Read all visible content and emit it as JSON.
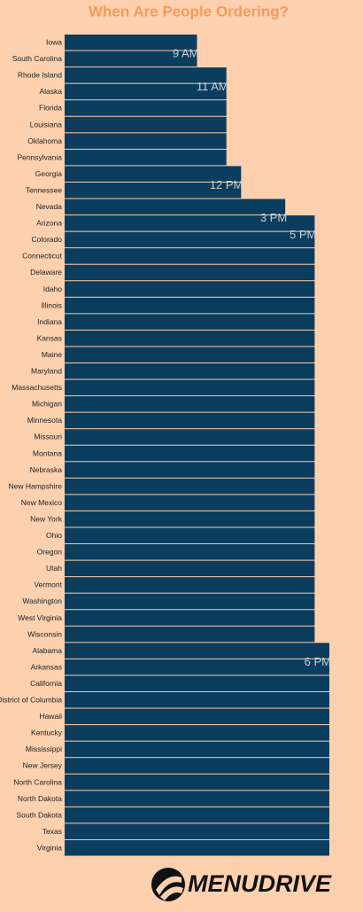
{
  "chart_data": {
    "type": "bar",
    "orientation": "horizontal",
    "title": "When Are People Ordering?",
    "categories": [
      "Iowa",
      "South Carolina",
      "Rhode Island",
      "Alaska",
      "Florida",
      "Louisiana",
      "Oklahoma",
      "Pennsylvania",
      "Georgia",
      "Tennessee",
      "Nevada",
      "Arizona",
      "Colorado",
      "Connecticut",
      "Delaware",
      "Idaho",
      "Illinois",
      "Indiana",
      "Kansas",
      "Maine",
      "Maryland",
      "Massachusetts",
      "Michigan",
      "Minnesota",
      "Missouri",
      "Montana",
      "Nebraska",
      "New Hampshire",
      "New Mexico",
      "New York",
      "Ohio",
      "Oregon",
      "Utah",
      "Vermont",
      "Washington",
      "West Virginia",
      "Wisconsin",
      "Alabama",
      "Arkansas",
      "California",
      "District of Columbia",
      "Hawaii",
      "Kentucky",
      "Mississippi",
      "New Jersey",
      "North Carolina",
      "North Dakota",
      "South Dakota",
      "Texas",
      "Virginia"
    ],
    "values": [
      9,
      9,
      11,
      11,
      11,
      11,
      11,
      11,
      12,
      12,
      15,
      17,
      17,
      17,
      17,
      17,
      17,
      17,
      17,
      17,
      17,
      17,
      17,
      17,
      17,
      17,
      17,
      17,
      17,
      17,
      17,
      17,
      17,
      17,
      17,
      17,
      17,
      18,
      18,
      18,
      18,
      18,
      18,
      18,
      18,
      18,
      18,
      18,
      18,
      18
    ],
    "value_labels": [
      "9 AM",
      null,
      "11 AM",
      null,
      null,
      null,
      null,
      null,
      "12 PM",
      null,
      "3 PM",
      "5 PM",
      null,
      null,
      null,
      null,
      null,
      null,
      null,
      null,
      null,
      null,
      null,
      null,
      null,
      null,
      null,
      null,
      null,
      null,
      null,
      null,
      null,
      null,
      null,
      null,
      null,
      "6 PM",
      null,
      null,
      null,
      null,
      null,
      null,
      null,
      null,
      null,
      null,
      null,
      null
    ],
    "color": "#0b3d5e"
  },
  "logo": {
    "text": "MENUDRIVE"
  }
}
